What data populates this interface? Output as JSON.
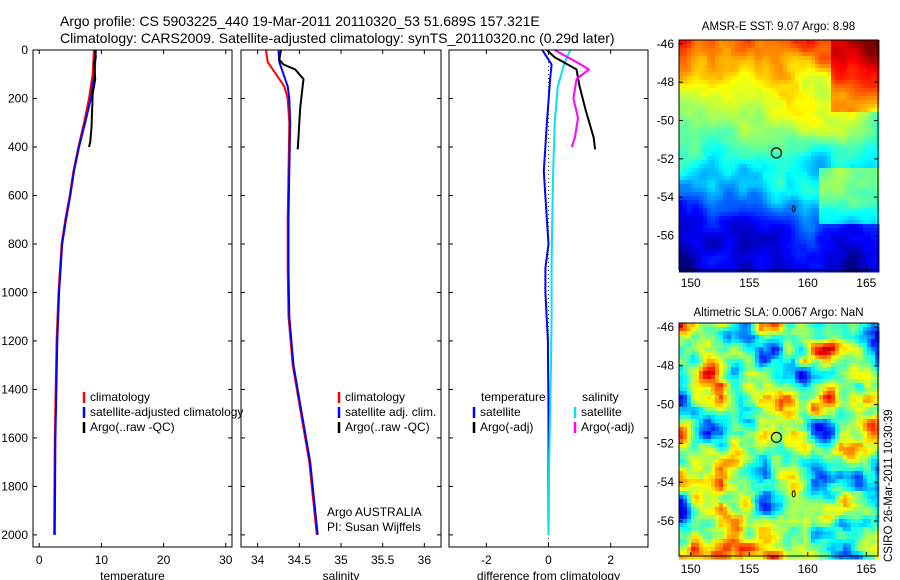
{
  "title_line1": "Argo profile: CS 5903225_440 19-Mar-2011 20110320_53 51.689S 157.321E",
  "title_line2": "Climatology: CARS2009. Satellite-adjusted climatology: synTS_20110320.nc (0.29d later)",
  "credit": "CSIRO 26-Mar-2011 10:30:39",
  "chart_data": [
    {
      "type": "line",
      "id": "temp",
      "xlabel": "temperature",
      "ylabel": "",
      "xlim": [
        -1,
        31
      ],
      "ylim": [
        2050,
        0
      ],
      "xticks": [
        0,
        10,
        20,
        30
      ],
      "yticks": [
        0,
        200,
        400,
        600,
        800,
        1000,
        1200,
        1400,
        1600,
        1800,
        2000
      ],
      "legend": [
        "climatology",
        "satellite-adjusted climatology",
        "Argo(..raw -QC)"
      ],
      "colors": {
        "clim": "#ff0000",
        "sat": "#0000ff",
        "argo": "#000000"
      },
      "series": [
        {
          "name": "climatology",
          "color": "#ff0000",
          "x": [
            8.8,
            8.6,
            8.0,
            7.2,
            6.3,
            5.5,
            4.9,
            4.2,
            3.6,
            3.1,
            2.8,
            2.5,
            2.4
          ],
          "y": [
            0,
            100,
            200,
            300,
            400,
            500,
            600,
            700,
            800,
            1000,
            1200,
            1600,
            2000
          ]
        },
        {
          "name": "satellite-adjusted climatology",
          "color": "#0000ff",
          "x": [
            9.1,
            8.9,
            8.3,
            7.4,
            6.4,
            5.6,
            5.0,
            4.3,
            3.7,
            3.2,
            2.9,
            2.6,
            2.5
          ],
          "y": [
            0,
            100,
            200,
            300,
            400,
            500,
            600,
            700,
            800,
            1000,
            1200,
            1600,
            2000
          ]
        },
        {
          "name": "Argo(..raw -QC)",
          "color": "#000000",
          "x": [
            9.0,
            9.1,
            8.8,
            8.9,
            9.0,
            8.6,
            8.5,
            8.4,
            8.2,
            8.0
          ],
          "y": [
            0,
            30,
            60,
            80,
            120,
            180,
            250,
            320,
            380,
            400
          ]
        }
      ]
    },
    {
      "type": "line",
      "id": "sal",
      "xlabel": "salinity",
      "ylabel": "",
      "xlim": [
        33.8,
        36.2
      ],
      "ylim": [
        2050,
        0
      ],
      "xticks": [
        34,
        34.5,
        35,
        35.5,
        36
      ],
      "xticklabels": [
        "34",
        "34.5",
        "35",
        "35.5",
        "36"
      ],
      "legend": [
        "climatology",
        "satellite adj. clim.",
        "Argo(..raw -QC)"
      ],
      "annotation": [
        "Argo AUSTRALIA",
        "PI: Susan Wijffels"
      ],
      "series": [
        {
          "name": "climatology",
          "color": "#ff0000",
          "x": [
            34.1,
            34.12,
            34.22,
            34.32,
            34.36,
            34.38,
            34.37,
            34.36,
            34.36,
            34.37,
            34.42,
            34.52,
            34.62,
            34.68,
            34.71
          ],
          "y": [
            0,
            50,
            100,
            150,
            200,
            300,
            500,
            700,
            900,
            1100,
            1300,
            1500,
            1700,
            1900,
            2000
          ]
        },
        {
          "name": "satellite adj. clim.",
          "color": "#0000ff",
          "x": [
            34.25,
            34.26,
            34.31,
            34.36,
            34.38,
            34.39,
            34.38,
            34.37,
            34.37,
            34.38,
            34.43,
            34.53,
            34.63,
            34.69,
            34.72
          ],
          "y": [
            0,
            50,
            100,
            150,
            200,
            300,
            500,
            700,
            900,
            1100,
            1300,
            1500,
            1700,
            1900,
            2000
          ]
        },
        {
          "name": "Argo(..raw -QC)",
          "color": "#000000",
          "x": [
            34.28,
            34.26,
            34.31,
            34.45,
            34.55,
            34.53,
            34.51,
            34.5,
            34.49,
            34.48
          ],
          "y": [
            0,
            40,
            60,
            80,
            120,
            180,
            240,
            300,
            360,
            410
          ]
        }
      ]
    },
    {
      "type": "line",
      "id": "diff",
      "xlabel": "difference from climatology",
      "ylabel": "",
      "xlim": [
        -3.2,
        3.2
      ],
      "ylim": [
        2050,
        0
      ],
      "xticks": [
        -2,
        0,
        2
      ],
      "legend_left_title": "temperature",
      "legend_right_title": "salinity",
      "legend_left": [
        "satellite",
        "Argo(-adj)"
      ],
      "legend_right": [
        "satellite",
        "Argo(-adj)"
      ],
      "series": [
        {
          "name": "temperature satellite",
          "color": "#0000ff",
          "x": [
            -0.2,
            0.1,
            0.05,
            -0.05,
            -0.15,
            -0.05,
            0.0,
            -0.1,
            -0.1,
            -0.02,
            0.0,
            0.0,
            0.0
          ],
          "y": [
            0,
            60,
            120,
            300,
            500,
            700,
            800,
            900,
            1000,
            1200,
            1500,
            1800,
            2000
          ]
        },
        {
          "name": "salinity satellite",
          "color": "#00e5ee",
          "x": [
            0.7,
            0.5,
            0.3,
            0.2,
            0.15,
            0.12,
            0.1,
            0.1,
            0.08,
            0.05,
            0.02,
            0.01,
            0.0
          ],
          "y": [
            0,
            60,
            150,
            300,
            500,
            700,
            900,
            1100,
            1300,
            1500,
            1700,
            1900,
            2000
          ]
        },
        {
          "name": "temperature Argo(-adj)",
          "color": "#000000",
          "x": [
            -0.05,
            0.2,
            0.9,
            1.0,
            1.2,
            1.45,
            1.5
          ],
          "y": [
            0,
            30,
            80,
            150,
            250,
            360,
            410
          ]
        },
        {
          "name": "salinity Argo(-adj)",
          "color": "#ff00ff",
          "x": [
            0.2,
            0.9,
            1.3,
            0.9,
            0.8,
            0.95,
            0.85,
            0.75
          ],
          "y": [
            0,
            50,
            80,
            120,
            200,
            280,
            360,
            400
          ]
        }
      ]
    },
    {
      "type": "heatmap",
      "id": "sst",
      "title": "AMSR-E SST: 9.07 Argo: 8.98",
      "xlim": [
        149,
        166
      ],
      "ylim": [
        -57.8,
        -45.8
      ],
      "xticks": [
        150,
        155,
        160,
        165
      ],
      "yticks": [
        -46,
        -48,
        -50,
        -52,
        -54,
        -56
      ],
      "float_position": [
        157.321,
        -51.689
      ],
      "marker2_position": [
        158.8,
        -54.6
      ]
    },
    {
      "type": "heatmap",
      "id": "sla",
      "title": "Altimetric SLA: 0.0067 Argo: NaN",
      "xlim": [
        149,
        166
      ],
      "ylim": [
        -57.8,
        -45.8
      ],
      "xticks": [
        150,
        155,
        160,
        165
      ],
      "yticks": [
        -46,
        -48,
        -50,
        -52,
        -54,
        -56
      ],
      "float_position": [
        157.321,
        -51.689
      ],
      "marker2_position": [
        158.8,
        -54.6
      ]
    }
  ]
}
